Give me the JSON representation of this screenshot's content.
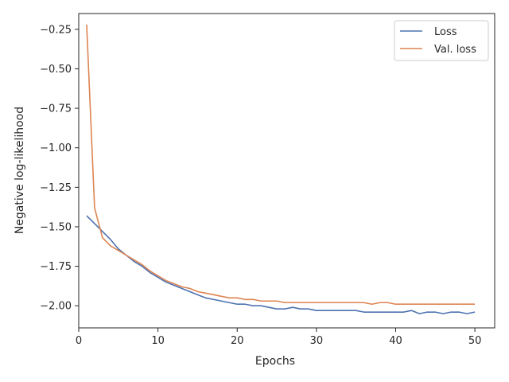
{
  "chart_data": {
    "type": "line",
    "title": "",
    "xlabel": "Epochs",
    "ylabel": "Negative log-likelihood",
    "xlim": [
      0,
      52.5
    ],
    "ylim": [
      -2.14,
      -0.15
    ],
    "xticks": [
      0,
      10,
      20,
      30,
      40,
      50
    ],
    "yticks": [
      -2.0,
      -1.75,
      -1.5,
      -1.25,
      -1.0,
      -0.75,
      -0.5,
      -0.25
    ],
    "xtick_labels": [
      "0",
      "10",
      "20",
      "30",
      "40",
      "50"
    ],
    "ytick_labels": [
      "−2.00",
      "−1.75",
      "−1.50",
      "−1.25",
      "−1.00",
      "−0.75",
      "−0.50",
      "−0.25"
    ],
    "grid": false,
    "legend_position": "top-right",
    "x": [
      1,
      2,
      3,
      4,
      5,
      6,
      7,
      8,
      9,
      10,
      11,
      12,
      13,
      14,
      15,
      16,
      17,
      18,
      19,
      20,
      21,
      22,
      23,
      24,
      25,
      26,
      27,
      28,
      29,
      30,
      31,
      32,
      33,
      34,
      35,
      36,
      37,
      38,
      39,
      40,
      41,
      42,
      43,
      44,
      45,
      46,
      47,
      48,
      49,
      50
    ],
    "series": [
      {
        "name": "Loss",
        "color": "#4c72b0",
        "values": [
          -1.43,
          -1.48,
          -1.53,
          -1.58,
          -1.64,
          -1.68,
          -1.72,
          -1.75,
          -1.79,
          -1.82,
          -1.85,
          -1.87,
          -1.89,
          -1.91,
          -1.93,
          -1.95,
          -1.96,
          -1.97,
          -1.98,
          -1.99,
          -1.99,
          -2.0,
          -2.0,
          -2.01,
          -2.02,
          -2.02,
          -2.01,
          -2.02,
          -2.02,
          -2.03,
          -2.03,
          -2.03,
          -2.03,
          -2.03,
          -2.03,
          -2.04,
          -2.04,
          -2.04,
          -2.04,
          -2.04,
          -2.04,
          -2.03,
          -2.05,
          -2.04,
          -2.04,
          -2.05,
          -2.04,
          -2.04,
          -2.05,
          -2.04
        ]
      },
      {
        "name": "Val. loss",
        "color": "#dd8452",
        "values": [
          -0.22,
          -1.38,
          -1.57,
          -1.62,
          -1.65,
          -1.68,
          -1.71,
          -1.74,
          -1.78,
          -1.81,
          -1.84,
          -1.86,
          -1.88,
          -1.89,
          -1.91,
          -1.92,
          -1.93,
          -1.94,
          -1.95,
          -1.95,
          -1.96,
          -1.96,
          -1.97,
          -1.97,
          -1.97,
          -1.98,
          -1.98,
          -1.98,
          -1.98,
          -1.98,
          -1.98,
          -1.98,
          -1.98,
          -1.98,
          -1.98,
          -1.98,
          -1.99,
          -1.98,
          -1.98,
          -1.99,
          -1.99,
          -1.99,
          -1.99,
          -1.99,
          -1.99,
          -1.99,
          -1.99,
          -1.99,
          -1.99,
          -1.99
        ]
      }
    ]
  }
}
